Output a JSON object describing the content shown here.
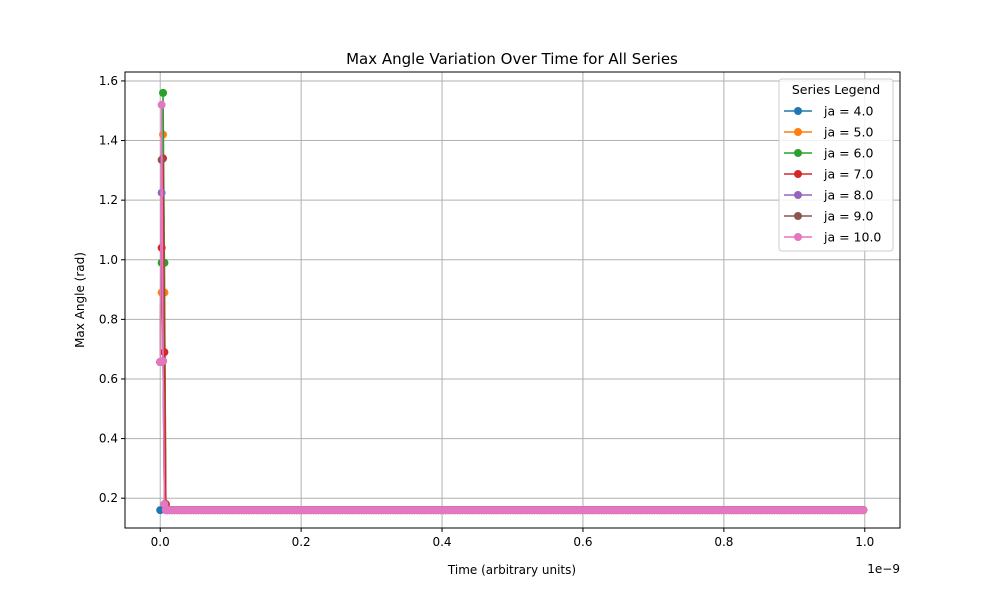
{
  "chart_data": {
    "type": "line",
    "title": "Max Angle Variation Over Time for All Series",
    "xlabel": "Time (arbitrary units)",
    "ylabel": "Max Angle (rad)",
    "x_offset_text": "1e−9",
    "xlim": [
      -5e-11,
      1.05e-09
    ],
    "ylim": [
      0.1,
      1.63
    ],
    "xticks": [
      0,
      2e-10,
      4e-10,
      6e-10,
      8e-10,
      1e-09
    ],
    "xtick_labels": [
      "0.0",
      "0.2",
      "0.4",
      "0.6",
      "0.8",
      "1.0"
    ],
    "yticks": [
      0.2,
      0.4,
      0.6,
      0.8,
      1.0,
      1.2,
      1.4,
      1.6
    ],
    "ytick_labels": [
      "0.2",
      "0.4",
      "0.6",
      "0.8",
      "1.0",
      "1.2",
      "1.4",
      "1.6"
    ],
    "grid": true,
    "legend_title": "Series Legend",
    "legend_position": "top-right",
    "series": [
      {
        "name": "ja = 4.0",
        "color": "#1f77b4",
        "x": [
          0,
          1e-11,
          1e-09
        ],
        "y": [
          0.16,
          0.16,
          0.16
        ]
      },
      {
        "name": "ja = 5.0",
        "color": "#ff7f0e",
        "x": [
          0,
          2e-12,
          4e-12,
          6e-12,
          8e-12,
          1e-11,
          1e-09
        ],
        "y": [
          0.657,
          0.89,
          1.42,
          0.89,
          0.18,
          0.16,
          0.16
        ]
      },
      {
        "name": "ja = 6.0",
        "color": "#2ca02c",
        "x": [
          0,
          2e-12,
          4e-12,
          6e-12,
          8e-12,
          1e-11,
          1e-09
        ],
        "y": [
          0.657,
          0.99,
          1.56,
          0.99,
          0.18,
          0.16,
          0.16
        ]
      },
      {
        "name": "ja = 7.0",
        "color": "#d62728",
        "x": [
          0,
          2e-12,
          4e-12,
          6e-12,
          8e-12,
          1e-11,
          1e-09
        ],
        "y": [
          0.657,
          1.04,
          1.34,
          0.69,
          0.18,
          0.16,
          0.16
        ]
      },
      {
        "name": "ja = 8.0",
        "color": "#9467bd",
        "x": [
          0,
          2e-12,
          4e-12,
          6e-12,
          8e-12,
          1e-11,
          1e-09
        ],
        "y": [
          0.657,
          1.225,
          0.66,
          0.18,
          0.16,
          0.16,
          0.16
        ]
      },
      {
        "name": "ja = 9.0",
        "color": "#8c564b",
        "x": [
          0,
          2e-12,
          4e-12,
          6e-12,
          8e-12,
          1e-11,
          1e-09
        ],
        "y": [
          0.657,
          1.335,
          0.66,
          0.18,
          0.16,
          0.16,
          0.16
        ]
      },
      {
        "name": "ja = 10.0",
        "color": "#e377c2",
        "x": [
          0,
          2e-12,
          4e-12,
          6e-12,
          8e-12,
          1e-11,
          1e-09
        ],
        "y": [
          0.657,
          1.52,
          0.66,
          0.18,
          0.16,
          0.16,
          0.16
        ]
      }
    ]
  }
}
